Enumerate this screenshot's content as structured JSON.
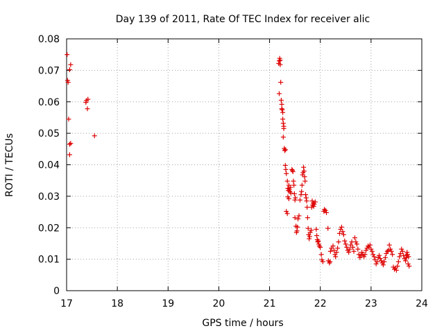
{
  "chart_data": {
    "type": "scatter",
    "title": "Day 139 of 2011, Rate Of TEC Index for receiver alic",
    "xlabel": "GPS time / hours",
    "ylabel": "ROTI / TECUs",
    "xlim": [
      17,
      24
    ],
    "ylim": [
      0,
      0.08
    ],
    "x_ticks": [
      "17",
      "18",
      "19",
      "20",
      "21",
      "22",
      "23",
      "24"
    ],
    "y_ticks": [
      "0",
      "0.01",
      "0.02",
      "0.03",
      "0.04",
      "0.05",
      "0.06",
      "0.07",
      "0.08"
    ],
    "grid": true,
    "marker": "+",
    "marker_color": "#dd0000",
    "series": [
      {
        "name": "ROTI",
        "points": [
          [
            17.01,
            0.075
          ],
          [
            17.02,
            0.0668
          ],
          [
            17.03,
            0.0662
          ],
          [
            17.06,
            0.0702
          ],
          [
            17.08,
            0.0718
          ],
          [
            17.04,
            0.0545
          ],
          [
            17.06,
            0.0465
          ],
          [
            17.08,
            0.0468
          ],
          [
            17.06,
            0.0432
          ],
          [
            17.38,
            0.0598
          ],
          [
            17.39,
            0.0604
          ],
          [
            17.42,
            0.0608
          ],
          [
            17.41,
            0.0578
          ],
          [
            17.55,
            0.0492
          ],
          [
            21.18,
            0.0722
          ],
          [
            21.19,
            0.073
          ],
          [
            21.2,
            0.0738
          ],
          [
            21.21,
            0.0732
          ],
          [
            21.21,
            0.0718
          ],
          [
            21.19,
            0.0626
          ],
          [
            21.22,
            0.0662
          ],
          [
            21.23,
            0.0605
          ],
          [
            21.24,
            0.0592
          ],
          [
            21.24,
            0.0578
          ],
          [
            21.25,
            0.0575
          ],
          [
            21.26,
            0.0566
          ],
          [
            21.26,
            0.0545
          ],
          [
            21.27,
            0.0532
          ],
          [
            21.28,
            0.0522
          ],
          [
            21.28,
            0.0515
          ],
          [
            21.27,
            0.0488
          ],
          [
            21.29,
            0.0452
          ],
          [
            21.3,
            0.0445
          ],
          [
            21.31,
            0.0448
          ],
          [
            21.31,
            0.0398
          ],
          [
            21.32,
            0.0385
          ],
          [
            21.33,
            0.0372
          ],
          [
            21.35,
            0.0348
          ],
          [
            21.36,
            0.0325
          ],
          [
            21.37,
            0.0318
          ],
          [
            21.38,
            0.0335
          ],
          [
            21.39,
            0.0322
          ],
          [
            21.4,
            0.0315
          ],
          [
            21.41,
            0.0328
          ],
          [
            21.42,
            0.031
          ],
          [
            21.36,
            0.0298
          ],
          [
            21.38,
            0.0292
          ],
          [
            21.33,
            0.0252
          ],
          [
            21.35,
            0.0245
          ],
          [
            21.44,
            0.0385
          ],
          [
            21.45,
            0.0382
          ],
          [
            21.46,
            0.0378
          ],
          [
            21.47,
            0.0348
          ],
          [
            21.48,
            0.0335
          ],
          [
            21.49,
            0.0308
          ],
          [
            21.5,
            0.0288
          ],
          [
            21.51,
            0.0295
          ],
          [
            21.5,
            0.0232
          ],
          [
            21.52,
            0.0205
          ],
          [
            21.53,
            0.0185
          ],
          [
            21.54,
            0.019
          ],
          [
            21.55,
            0.0202
          ],
          [
            21.56,
            0.0228
          ],
          [
            21.58,
            0.0238
          ],
          [
            21.6,
            0.0288
          ],
          [
            21.62,
            0.0305
          ],
          [
            21.63,
            0.0315
          ],
          [
            21.64,
            0.0335
          ],
          [
            21.65,
            0.0368
          ],
          [
            21.66,
            0.0375
          ],
          [
            21.67,
            0.0392
          ],
          [
            21.68,
            0.038
          ],
          [
            21.69,
            0.0362
          ],
          [
            21.7,
            0.0348
          ],
          [
            21.71,
            0.0305
          ],
          [
            21.72,
            0.0295
          ],
          [
            21.73,
            0.0285
          ],
          [
            21.74,
            0.0265
          ],
          [
            21.75,
            0.0232
          ],
          [
            21.76,
            0.0198
          ],
          [
            21.77,
            0.0178
          ],
          [
            21.78,
            0.0165
          ],
          [
            21.79,
            0.0172
          ],
          [
            21.8,
            0.0185
          ],
          [
            21.82,
            0.0192
          ],
          [
            21.83,
            0.0265
          ],
          [
            21.84,
            0.0285
          ],
          [
            21.85,
            0.0272
          ],
          [
            21.86,
            0.0278
          ],
          [
            21.87,
            0.0268
          ],
          [
            21.88,
            0.0275
          ],
          [
            21.9,
            0.0282
          ],
          [
            21.92,
            0.0195
          ],
          [
            21.93,
            0.0175
          ],
          [
            21.94,
            0.0162
          ],
          [
            21.95,
            0.0155
          ],
          [
            21.96,
            0.0158
          ],
          [
            21.97,
            0.0148
          ],
          [
            21.98,
            0.0142
          ],
          [
            22.0,
            0.0138
          ],
          [
            22.02,
            0.0115
          ],
          [
            22.03,
            0.0098
          ],
          [
            22.05,
            0.0092
          ],
          [
            22.07,
            0.0252
          ],
          [
            22.08,
            0.0258
          ],
          [
            22.1,
            0.0255
          ],
          [
            22.12,
            0.0248
          ],
          [
            22.15,
            0.0198
          ],
          [
            22.16,
            0.0095
          ],
          [
            22.18,
            0.0088
          ],
          [
            22.19,
            0.0092
          ],
          [
            22.2,
            0.0125
          ],
          [
            22.22,
            0.0135
          ],
          [
            22.25,
            0.0142
          ],
          [
            22.27,
            0.0128
          ],
          [
            22.29,
            0.0115
          ],
          [
            22.3,
            0.0108
          ],
          [
            22.32,
            0.0122
          ],
          [
            22.34,
            0.0135
          ],
          [
            22.36,
            0.0155
          ],
          [
            22.38,
            0.0182
          ],
          [
            22.4,
            0.0195
          ],
          [
            22.42,
            0.0202
          ],
          [
            22.44,
            0.0188
          ],
          [
            22.46,
            0.0178
          ],
          [
            22.48,
            0.0158
          ],
          [
            22.5,
            0.0148
          ],
          [
            22.52,
            0.0138
          ],
          [
            22.54,
            0.0128
          ],
          [
            22.56,
            0.0122
          ],
          [
            22.58,
            0.0132
          ],
          [
            22.6,
            0.0145
          ],
          [
            22.62,
            0.0155
          ],
          [
            22.64,
            0.0138
          ],
          [
            22.66,
            0.0125
          ],
          [
            22.68,
            0.0168
          ],
          [
            22.7,
            0.0155
          ],
          [
            22.72,
            0.0148
          ],
          [
            22.74,
            0.0132
          ],
          [
            22.76,
            0.0115
          ],
          [
            22.78,
            0.0105
          ],
          [
            22.8,
            0.0112
          ],
          [
            22.82,
            0.0122
          ],
          [
            22.84,
            0.0115
          ],
          [
            22.86,
            0.0108
          ],
          [
            22.88,
            0.0115
          ],
          [
            22.9,
            0.0128
          ],
          [
            22.92,
            0.0135
          ],
          [
            22.94,
            0.0142
          ],
          [
            22.96,
            0.0138
          ],
          [
            22.98,
            0.0145
          ],
          [
            23.0,
            0.0132
          ],
          [
            23.02,
            0.0125
          ],
          [
            23.04,
            0.0115
          ],
          [
            23.06,
            0.0108
          ],
          [
            23.08,
            0.0098
          ],
          [
            23.1,
            0.0085
          ],
          [
            23.12,
            0.0092
          ],
          [
            23.14,
            0.0105
          ],
          [
            23.16,
            0.0112
          ],
          [
            23.18,
            0.0102
          ],
          [
            23.2,
            0.0095
          ],
          [
            23.22,
            0.0088
          ],
          [
            23.24,
            0.0082
          ],
          [
            23.26,
            0.0092
          ],
          [
            23.28,
            0.0105
          ],
          [
            23.3,
            0.0118
          ],
          [
            23.32,
            0.0125
          ],
          [
            23.34,
            0.0128
          ],
          [
            23.36,
            0.0145
          ],
          [
            23.38,
            0.0132
          ],
          [
            23.4,
            0.0125
          ],
          [
            23.42,
            0.0115
          ],
          [
            23.44,
            0.0075
          ],
          [
            23.46,
            0.0068
          ],
          [
            23.48,
            0.0072
          ],
          [
            23.5,
            0.0065
          ],
          [
            23.52,
            0.0078
          ],
          [
            23.54,
            0.0092
          ],
          [
            23.56,
            0.0108
          ],
          [
            23.58,
            0.0118
          ],
          [
            23.6,
            0.0132
          ],
          [
            23.62,
            0.0125
          ],
          [
            23.64,
            0.0112
          ],
          [
            23.66,
            0.0102
          ],
          [
            23.68,
            0.0095
          ],
          [
            23.7,
            0.0105
          ],
          [
            23.72,
            0.0115
          ],
          [
            23.74,
            0.0108
          ],
          [
            23.75,
            0.0078
          ],
          [
            23.73,
            0.0085
          ],
          [
            23.71,
            0.0122
          ],
          [
            23.69,
            0.0112
          ]
        ]
      }
    ]
  }
}
